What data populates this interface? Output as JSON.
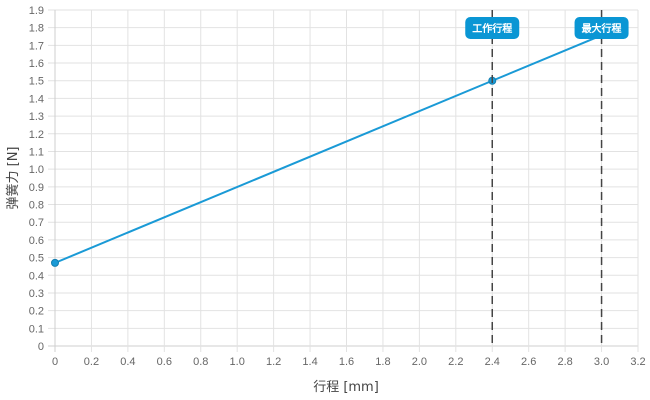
{
  "chart_data": {
    "type": "line",
    "xlabel": "行程 [mm]",
    "ylabel": "弹簧力 [N]",
    "xlim": [
      0,
      3.2
    ],
    "ylim": [
      0,
      1.9
    ],
    "xticks": [
      "0",
      "0.2",
      "0.4",
      "0.6",
      "0.8",
      "1.0",
      "1.2",
      "1.4",
      "1.6",
      "1.8",
      "2.0",
      "2.2",
      "2.4",
      "2.6",
      "2.8",
      "3.0",
      "3.2"
    ],
    "yticks": [
      "0",
      "0.1",
      "0.2",
      "0.3",
      "0.4",
      "0.5",
      "0.6",
      "0.7",
      "0.8",
      "0.9",
      "1.0",
      "1.1",
      "1.2",
      "1.3",
      "1.4",
      "1.5",
      "1.6",
      "1.7",
      "1.8",
      "1.9"
    ],
    "grid": true,
    "series": [
      {
        "x": [
          0,
          2.4,
          3.0
        ],
        "y": [
          0.47,
          1.5,
          1.757
        ],
        "color": "#1a9ad6",
        "points": [
          [
            0,
            0.47
          ],
          [
            2.4,
            1.5
          ]
        ]
      }
    ],
    "annotations": [
      {
        "label": "工作行程",
        "x": 2.4,
        "style": "dashed-vertical"
      },
      {
        "label": "最大行程",
        "x": 3.0,
        "style": "dashed-vertical"
      }
    ],
    "colors": {
      "line": "#1a9ad6",
      "label_bg": "#0a96d4",
      "grid": "#e2e2e2",
      "marker_line": "#444444"
    }
  }
}
